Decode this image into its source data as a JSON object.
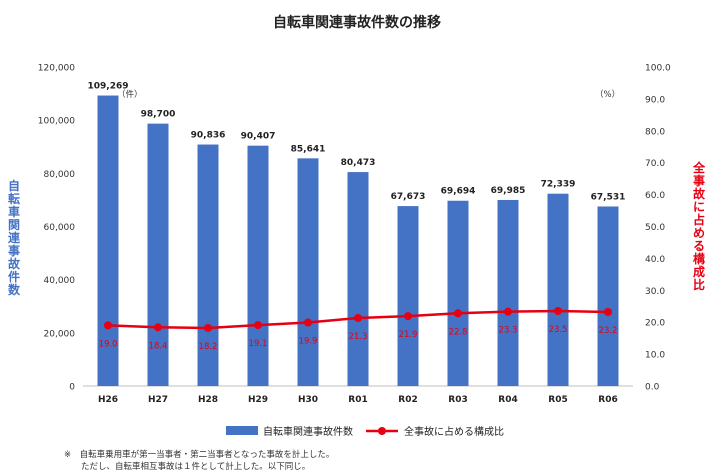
{
  "chart_data": {
    "type": "bar",
    "title": "自転車関連事故件数の推移",
    "categories": [
      "H26",
      "H27",
      "H28",
      "H29",
      "H30",
      "R01",
      "R02",
      "R03",
      "R04",
      "R05",
      "R06"
    ],
    "series": [
      {
        "name": "自転車関連事故件数",
        "kind": "bar",
        "axis": "left",
        "color": "#4472C4",
        "values": [
          109269,
          98700,
          90836,
          90407,
          85641,
          80473,
          67673,
          69694,
          69985,
          72339,
          67531
        ],
        "labels": [
          "109,269",
          "98,700",
          "90,836",
          "90,407",
          "85,641",
          "80,473",
          "67,673",
          "69,694",
          "69,985",
          "72,339",
          "67,531"
        ]
      },
      {
        "name": "全事故に占める構成比",
        "kind": "line",
        "axis": "right",
        "color": "#E60012",
        "values": [
          19.0,
          18.4,
          18.2,
          19.1,
          19.9,
          21.3,
          21.9,
          22.8,
          23.3,
          23.5,
          23.2
        ],
        "labels": [
          "19.0",
          "18.4",
          "18.2",
          "19.1",
          "19.9",
          "21.3",
          "21.9",
          "22.8",
          "23.3",
          "23.5",
          "23.2"
        ]
      }
    ],
    "y_left": {
      "label": "自転車関連事故件数",
      "unit": "（件）",
      "ylim": [
        0,
        120000
      ],
      "ticks": [
        "0",
        "20,000",
        "40,000",
        "60,000",
        "80,000",
        "100,000",
        "120,000"
      ]
    },
    "y_right": {
      "label": "全事故に占める構成比",
      "unit": "（%）",
      "ylim": [
        0,
        100
      ],
      "ticks": [
        "0.0",
        "10.0",
        "20.0",
        "30.0",
        "40.0",
        "50.0",
        "60.0",
        "70.0",
        "80.0",
        "90.0",
        "100.0"
      ]
    },
    "grid": false,
    "legend_position": "bottom"
  },
  "notes": [
    "※　自転車乗用車が第一当事者・第二当事者となった事故を計上した。",
    "　　ただし、自転車相互事故は１件として計上した。以下同じ。"
  ]
}
